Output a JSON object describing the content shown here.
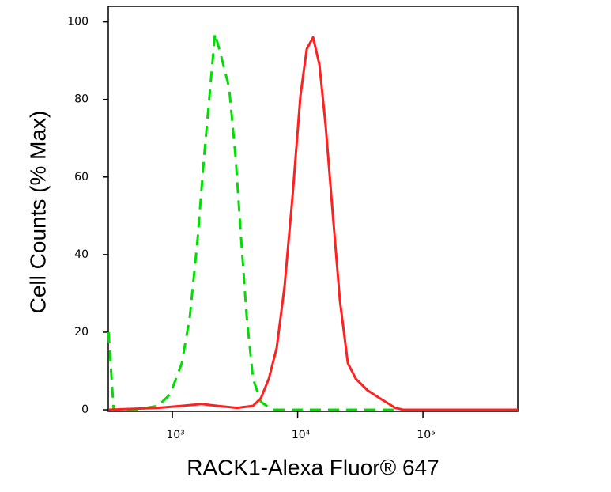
{
  "chart_data": {
    "type": "line",
    "x_label": "RACK1-Alexa Fluor® 647",
    "y_label": "Cell Counts (% Max)",
    "log_x": true,
    "xlim": [
      308,
      571000
    ],
    "ylim": [
      -0.4,
      104
    ],
    "xticks": [
      {
        "value": 1000,
        "label": "10³"
      },
      {
        "value": 10000,
        "label": "10⁴"
      },
      {
        "value": 100000,
        "label": "10⁵"
      }
    ],
    "yticks": [
      0,
      20,
      40,
      60,
      80,
      100
    ],
    "series": [
      {
        "color": "#00dd00",
        "dashed": true,
        "x": [
          310,
          340,
          500,
          770,
          960,
          1190,
          1380,
          1590,
          1790,
          1980,
          2190,
          2460,
          2840,
          3200,
          3540,
          3920,
          4400,
          5090,
          6320,
          60000,
          570000
        ],
        "values": [
          20,
          0,
          0,
          1,
          4,
          12,
          24,
          44,
          65,
          81,
          97,
          91,
          83,
          65,
          44,
          24,
          8,
          2,
          0,
          0,
          0
        ]
      },
      {
        "color": "#ff2020",
        "dashed": false,
        "x": [
          310,
          770,
          1190,
          1710,
          2290,
          3290,
          4400,
          5090,
          5890,
          6810,
          7870,
          9100,
          10520,
          11820,
          13280,
          14920,
          16760,
          18800,
          21760,
          25180,
          29120,
          36160,
          44970,
          60100,
          69500,
          570000
        ],
        "values": [
          0,
          0.5,
          1,
          1.5,
          1,
          0.5,
          1,
          3,
          8,
          16,
          32,
          55,
          81,
          93,
          96,
          89,
          73,
          53,
          28,
          12,
          8,
          5,
          3,
          0.5,
          0,
          0
        ]
      }
    ]
  }
}
